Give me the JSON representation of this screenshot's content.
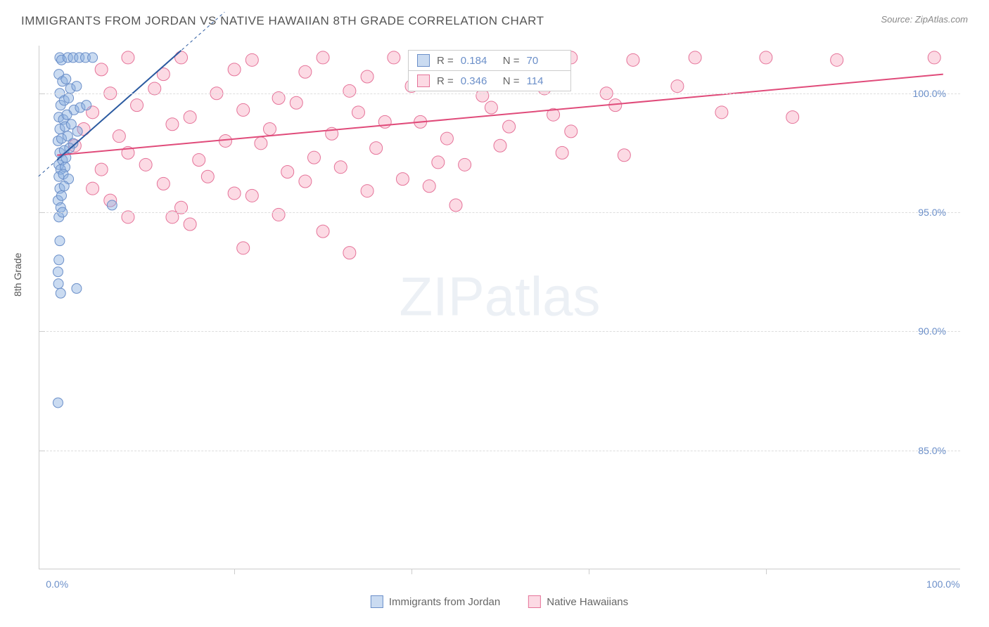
{
  "title": "IMMIGRANTS FROM JORDAN VS NATIVE HAWAIIAN 8TH GRADE CORRELATION CHART",
  "source": "Source: ZipAtlas.com",
  "watermark_zip": "ZIP",
  "watermark_atlas": "atlas",
  "axis": {
    "y_title": "8th Grade",
    "y_ticks": [
      {
        "v": 100.0,
        "label": "100.0%"
      },
      {
        "v": 95.0,
        "label": "95.0%"
      },
      {
        "v": 90.0,
        "label": "90.0%"
      },
      {
        "v": 85.0,
        "label": "85.0%"
      }
    ],
    "y_min": 80.0,
    "y_max": 102.0,
    "x_ticks": [
      {
        "v": 0.0,
        "label": "0.0%"
      },
      {
        "v": 100.0,
        "label": "100.0%"
      }
    ],
    "x_minor": [
      20,
      40,
      60,
      80
    ],
    "x_min": -2.0,
    "x_max": 102.0
  },
  "series": {
    "blue": {
      "name": "Immigrants from Jordan",
      "r": "0.184",
      "n": "70",
      "fill": "rgba(137, 175, 224, 0.45)",
      "stroke": "#6b8fc9",
      "line_color": "#2b5aa0",
      "marker_radius": 7,
      "trend": {
        "x1": 0,
        "y1": 97.2,
        "x2": 14,
        "y2": 101.8
      },
      "points": [
        [
          0.3,
          101.5
        ],
        [
          0.5,
          101.4
        ],
        [
          1.2,
          101.5
        ],
        [
          1.8,
          101.5
        ],
        [
          2.5,
          101.5
        ],
        [
          3.2,
          101.5
        ],
        [
          4.0,
          101.5
        ],
        [
          0.2,
          100.8
        ],
        [
          0.6,
          100.5
        ],
        [
          1.0,
          100.6
        ],
        [
          1.5,
          100.2
        ],
        [
          2.2,
          100.3
        ],
        [
          0.3,
          100.0
        ],
        [
          0.4,
          99.5
        ],
        [
          0.8,
          99.7
        ],
        [
          1.3,
          99.8
        ],
        [
          1.9,
          99.3
        ],
        [
          2.6,
          99.4
        ],
        [
          3.3,
          99.5
        ],
        [
          0.2,
          99.0
        ],
        [
          0.7,
          98.9
        ],
        [
          1.1,
          99.1
        ],
        [
          0.3,
          98.5
        ],
        [
          0.9,
          98.6
        ],
        [
          1.6,
          98.7
        ],
        [
          2.3,
          98.4
        ],
        [
          0.1,
          98.0
        ],
        [
          0.5,
          98.1
        ],
        [
          1.2,
          98.2
        ],
        [
          1.8,
          97.9
        ],
        [
          0.3,
          97.5
        ],
        [
          0.8,
          97.6
        ],
        [
          1.4,
          97.7
        ],
        [
          0.2,
          97.0
        ],
        [
          0.6,
          97.2
        ],
        [
          1.0,
          97.3
        ],
        [
          0.4,
          96.8
        ],
        [
          0.9,
          96.9
        ],
        [
          0.2,
          96.5
        ],
        [
          0.7,
          96.6
        ],
        [
          1.3,
          96.4
        ],
        [
          0.3,
          96.0
        ],
        [
          0.8,
          96.1
        ],
        [
          0.1,
          95.5
        ],
        [
          0.5,
          95.7
        ],
        [
          0.4,
          95.2
        ],
        [
          6.2,
          95.3
        ],
        [
          0.2,
          94.8
        ],
        [
          0.6,
          95.0
        ],
        [
          0.3,
          93.8
        ],
        [
          0.2,
          93.0
        ],
        [
          0.1,
          92.5
        ],
        [
          0.15,
          92.0
        ],
        [
          2.2,
          91.8
        ],
        [
          0.4,
          91.6
        ],
        [
          0.1,
          87.0
        ]
      ]
    },
    "pink": {
      "name": "Native Hawaiians",
      "r": "0.346",
      "n": "114",
      "fill": "rgba(248, 174, 195, 0.45)",
      "stroke": "#e57399",
      "line_color": "#e04b7a",
      "marker_radius": 9,
      "trend": {
        "x1": 0,
        "y1": 97.4,
        "x2": 100,
        "y2": 100.8
      },
      "points": [
        [
          8,
          101.5
        ],
        [
          14,
          101.5
        ],
        [
          22,
          101.4
        ],
        [
          30,
          101.5
        ],
        [
          38,
          101.5
        ],
        [
          45,
          101.4
        ],
        [
          52,
          101.5
        ],
        [
          58,
          101.5
        ],
        [
          65,
          101.4
        ],
        [
          72,
          101.5
        ],
        [
          80,
          101.5
        ],
        [
          88,
          101.4
        ],
        [
          99,
          101.5
        ],
        [
          5,
          101.0
        ],
        [
          12,
          100.8
        ],
        [
          20,
          101.0
        ],
        [
          28,
          100.9
        ],
        [
          35,
          100.7
        ],
        [
          42,
          101.0
        ],
        [
          6,
          100.0
        ],
        [
          11,
          100.2
        ],
        [
          18,
          100.0
        ],
        [
          25,
          99.8
        ],
        [
          33,
          100.1
        ],
        [
          40,
          100.3
        ],
        [
          48,
          99.9
        ],
        [
          55,
          100.2
        ],
        [
          62,
          100.0
        ],
        [
          70,
          100.3
        ],
        [
          83,
          99.0
        ],
        [
          4,
          99.2
        ],
        [
          9,
          99.5
        ],
        [
          15,
          99.0
        ],
        [
          21,
          99.3
        ],
        [
          27,
          99.6
        ],
        [
          34,
          99.2
        ],
        [
          41,
          98.8
        ],
        [
          49,
          99.4
        ],
        [
          56,
          99.1
        ],
        [
          63,
          99.5
        ],
        [
          75,
          99.2
        ],
        [
          3,
          98.5
        ],
        [
          7,
          98.2
        ],
        [
          13,
          98.7
        ],
        [
          19,
          98.0
        ],
        [
          24,
          98.5
        ],
        [
          31,
          98.3
        ],
        [
          37,
          98.8
        ],
        [
          44,
          98.1
        ],
        [
          51,
          98.6
        ],
        [
          58,
          98.4
        ],
        [
          2,
          97.8
        ],
        [
          8,
          97.5
        ],
        [
          16,
          97.2
        ],
        [
          23,
          97.9
        ],
        [
          29,
          97.3
        ],
        [
          36,
          97.7
        ],
        [
          43,
          97.1
        ],
        [
          50,
          97.8
        ],
        [
          57,
          97.5
        ],
        [
          64,
          97.4
        ],
        [
          5,
          96.8
        ],
        [
          10,
          97.0
        ],
        [
          17,
          96.5
        ],
        [
          26,
          96.7
        ],
        [
          32,
          96.9
        ],
        [
          39,
          96.4
        ],
        [
          46,
          97.0
        ],
        [
          4,
          96.0
        ],
        [
          12,
          96.2
        ],
        [
          20,
          95.8
        ],
        [
          28,
          96.3
        ],
        [
          35,
          95.9
        ],
        [
          42,
          96.1
        ],
        [
          6,
          95.5
        ],
        [
          14,
          95.2
        ],
        [
          22,
          95.7
        ],
        [
          45,
          95.3
        ],
        [
          8,
          94.8
        ],
        [
          15,
          94.5
        ],
        [
          25,
          94.9
        ],
        [
          30,
          94.2
        ],
        [
          21,
          93.5
        ],
        [
          33,
          93.3
        ],
        [
          13,
          94.8
        ]
      ]
    }
  },
  "legend_top": {
    "r_label": "R  =",
    "n_label": "N  ="
  },
  "colors": {
    "text_blue": "#6b8fc9",
    "text_gray": "#666666",
    "grid": "#dddddd"
  }
}
